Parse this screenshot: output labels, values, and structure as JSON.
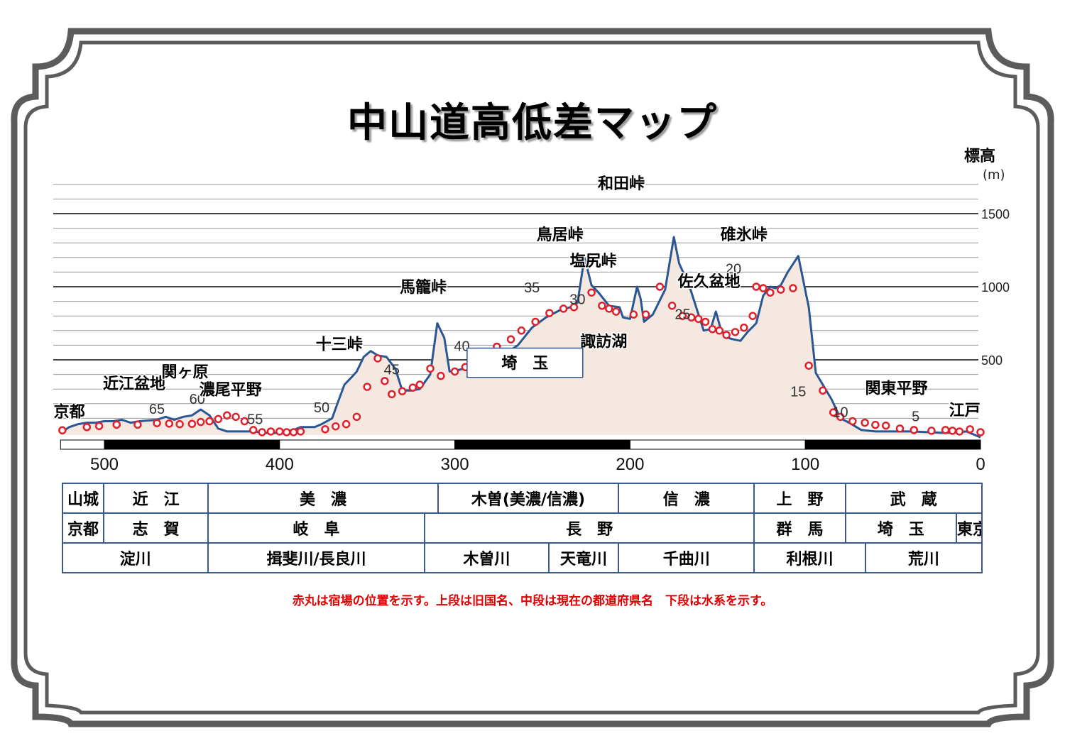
{
  "title": "中山道高低差マップ",
  "y_axis_title": "標高",
  "y_axis_unit": "(m)",
  "note": "赤丸は宿場の位置を示す。上段は旧国名、中段は現在の都道府県名　下段は水系を示す。",
  "chart_data": {
    "type": "area",
    "xlim": [
      525,
      0
    ],
    "ylim": [
      0,
      1700
    ],
    "y_ticks": [
      "500",
      "1000",
      "1500"
    ],
    "x_ticks": [
      "500",
      "400",
      "300",
      "200",
      "100",
      "0"
    ],
    "profile": [
      [
        525,
        0
      ],
      [
        520,
        40
      ],
      [
        515,
        60
      ],
      [
        510,
        70
      ],
      [
        505,
        70
      ],
      [
        500,
        80
      ],
      [
        495,
        80
      ],
      [
        490,
        90
      ],
      [
        485,
        70
      ],
      [
        480,
        80
      ],
      [
        470,
        90
      ],
      [
        465,
        110
      ],
      [
        460,
        90
      ],
      [
        455,
        110
      ],
      [
        450,
        120
      ],
      [
        445,
        160
      ],
      [
        440,
        120
      ],
      [
        435,
        30
      ],
      [
        430,
        10
      ],
      [
        425,
        10
      ],
      [
        415,
        10
      ],
      [
        408,
        0
      ],
      [
        400,
        0
      ],
      [
        392,
        20
      ],
      [
        388,
        40
      ],
      [
        380,
        40
      ],
      [
        376,
        60
      ],
      [
        370,
        100
      ],
      [
        367,
        200
      ],
      [
        363,
        330
      ],
      [
        359,
        380
      ],
      [
        356,
        420
      ],
      [
        352,
        520
      ],
      [
        348,
        560
      ],
      [
        344,
        530
      ],
      [
        339,
        520
      ],
      [
        334,
        440
      ],
      [
        330,
        290
      ],
      [
        325,
        290
      ],
      [
        320,
        300
      ],
      [
        314,
        400
      ],
      [
        310,
        750
      ],
      [
        306,
        650
      ],
      [
        303,
        420
      ],
      [
        298,
        430
      ],
      [
        292,
        450
      ],
      [
        288,
        450
      ],
      [
        282,
        490
      ],
      [
        274,
        520
      ],
      [
        264,
        600
      ],
      [
        256,
        720
      ],
      [
        248,
        790
      ],
      [
        240,
        840
      ],
      [
        234,
        860
      ],
      [
        230,
        890
      ],
      [
        226,
        1200
      ],
      [
        222,
        1010
      ],
      [
        218,
        960
      ],
      [
        212,
        870
      ],
      [
        206,
        860
      ],
      [
        204,
        790
      ],
      [
        200,
        780
      ],
      [
        196,
        1000
      ],
      [
        194,
        920
      ],
      [
        192,
        760
      ],
      [
        187,
        810
      ],
      [
        180,
        980
      ],
      [
        175,
        1340
      ],
      [
        172,
        1160
      ],
      [
        166,
        1000
      ],
      [
        162,
        850
      ],
      [
        158,
        700
      ],
      [
        154,
        710
      ],
      [
        151,
        830
      ],
      [
        148,
        700
      ],
      [
        144,
        650
      ],
      [
        141,
        640
      ],
      [
        137,
        630
      ],
      [
        133,
        690
      ],
      [
        128,
        750
      ],
      [
        124,
        940
      ],
      [
        120,
        1000
      ],
      [
        117,
        990
      ],
      [
        114,
        1010
      ],
      [
        110,
        1100
      ],
      [
        104,
        1210
      ],
      [
        98,
        860
      ],
      [
        94,
        410
      ],
      [
        90,
        330
      ],
      [
        85,
        230
      ],
      [
        80,
        100
      ],
      [
        75,
        70
      ],
      [
        68,
        20
      ],
      [
        60,
        10
      ],
      [
        52,
        10
      ],
      [
        40,
        10
      ],
      [
        20,
        0
      ],
      [
        8,
        10
      ],
      [
        0,
        -30
      ]
    ],
    "stations": [
      [
        524,
        18
      ],
      [
        510,
        40
      ],
      [
        503,
        47
      ],
      [
        493,
        57
      ],
      [
        481,
        57
      ],
      [
        470,
        67
      ],
      [
        463,
        64
      ],
      [
        457,
        60
      ],
      [
        450,
        62
      ],
      [
        445,
        75
      ],
      [
        440,
        80
      ],
      [
        435,
        95
      ],
      [
        430,
        120
      ],
      [
        425,
        110
      ],
      [
        420,
        80
      ],
      [
        415,
        20
      ],
      [
        410,
        5
      ],
      [
        405,
        10
      ],
      [
        400,
        10
      ],
      [
        396,
        5
      ],
      [
        392,
        5
      ],
      [
        388,
        10
      ],
      [
        374,
        25
      ],
      [
        368,
        45
      ],
      [
        362,
        60
      ],
      [
        356,
        110
      ],
      [
        350,
        315
      ],
      [
        344,
        510
      ],
      [
        340,
        355
      ],
      [
        336,
        265
      ],
      [
        330,
        285
      ],
      [
        324,
        310
      ],
      [
        320,
        330
      ],
      [
        314,
        440
      ],
      [
        308,
        390
      ],
      [
        300,
        420
      ],
      [
        294,
        450
      ],
      [
        288,
        490
      ],
      [
        282,
        510
      ],
      [
        276,
        590
      ],
      [
        268,
        640
      ],
      [
        262,
        700
      ],
      [
        254,
        760
      ],
      [
        246,
        820
      ],
      [
        238,
        850
      ],
      [
        232,
        860
      ],
      [
        222,
        960
      ],
      [
        216,
        870
      ],
      [
        212,
        850
      ],
      [
        208,
        830
      ],
      [
        198,
        810
      ],
      [
        191,
        810
      ],
      [
        183,
        1000
      ],
      [
        176,
        870
      ],
      [
        170,
        800
      ],
      [
        165,
        790
      ],
      [
        161,
        780
      ],
      [
        157,
        760
      ],
      [
        153,
        710
      ],
      [
        149,
        700
      ],
      [
        145,
        670
      ],
      [
        140,
        690
      ],
      [
        135,
        720
      ],
      [
        130,
        800
      ],
      [
        128,
        1000
      ],
      [
        124,
        990
      ],
      [
        120,
        960
      ],
      [
        114,
        980
      ],
      [
        107,
        990
      ],
      [
        98,
        460
      ],
      [
        90,
        290
      ],
      [
        84,
        140
      ],
      [
        80,
        110
      ],
      [
        73,
        80
      ],
      [
        66,
        70
      ],
      [
        60,
        55
      ],
      [
        54,
        50
      ],
      [
        46,
        30
      ],
      [
        38,
        20
      ],
      [
        28,
        15
      ],
      [
        20,
        20
      ],
      [
        16,
        15
      ],
      [
        12,
        10
      ],
      [
        6,
        25
      ],
      [
        0,
        5
      ]
    ],
    "distance_labels": [
      {
        "text": "65",
        "x": 470,
        "elev": 130
      },
      {
        "text": "60",
        "x": 447,
        "elev": 200
      },
      {
        "text": "55",
        "x": 414,
        "elev": 60
      },
      {
        "text": "50",
        "x": 376,
        "elev": 140
      },
      {
        "text": "45",
        "x": 336,
        "elev": 400
      },
      {
        "text": "40",
        "x": 296,
        "elev": 560
      },
      {
        "text": "35",
        "x": 256,
        "elev": 960
      },
      {
        "text": "30",
        "x": 230,
        "elev": 880
      },
      {
        "text": "25",
        "x": 170,
        "elev": 780
      },
      {
        "text": "20",
        "x": 141,
        "elev": 1090
      },
      {
        "text": "15",
        "x": 104,
        "elev": 250
      },
      {
        "text": "10",
        "x": 80,
        "elev": 110
      },
      {
        "text": "5",
        "x": 37,
        "elev": 80
      }
    ],
    "place_labels": [
      {
        "text": "京都",
        "x": 520,
        "elev": 110
      },
      {
        "text": "近江盆地",
        "x": 483,
        "elev": 300
      },
      {
        "text": "関ヶ原",
        "x": 454,
        "elev": 380
      },
      {
        "text": "濃尾平野",
        "x": 428,
        "elev": 260
      },
      {
        "text": "十三峠",
        "x": 366,
        "elev": 570
      },
      {
        "text": "馬籠峠",
        "x": 318,
        "elev": 960
      },
      {
        "text": "鳥居峠",
        "x": 240,
        "elev": 1320
      },
      {
        "text": "塩尻峠",
        "x": 221,
        "elev": 1140
      },
      {
        "text": "諏訪湖",
        "x": 215,
        "elev": 590
      },
      {
        "text": "和田峠",
        "x": 205,
        "elev": 1670
      },
      {
        "text": "佐久盆地",
        "x": 155,
        "elev": 1000
      },
      {
        "text": "碓氷峠",
        "x": 135,
        "elev": 1320
      },
      {
        "text": "関東平野",
        "x": 48,
        "elev": 270
      },
      {
        "text": "江戸",
        "x": 9,
        "elev": 120
      }
    ],
    "box_label": {
      "text": "埼　玉",
      "x1": 293,
      "x2": 227,
      "elev_top": 580,
      "elev_bottom": 380
    },
    "scale_bar": [
      {
        "from": 525,
        "to": 500,
        "fill": "#ffffff"
      },
      {
        "from": 500,
        "to": 400,
        "fill": "#000000"
      },
      {
        "from": 400,
        "to": 300,
        "fill": "#ffffff"
      },
      {
        "from": 300,
        "to": 200,
        "fill": "#000000"
      },
      {
        "from": 200,
        "to": 100,
        "fill": "#ffffff"
      },
      {
        "from": 100,
        "to": 0,
        "fill": "#000000"
      }
    ],
    "fill_color": "#f4e8e0",
    "line_color": "#2a5694",
    "station_color": "#e0202a"
  },
  "regions": {
    "row1": [
      "山城",
      "近　江",
      "美　濃",
      "木曽(美濃/信濃)",
      "信　濃",
      "上　野",
      "武　蔵"
    ],
    "row2": [
      "京都",
      "志　賀",
      "岐　阜",
      "長　野",
      "群　馬",
      "埼　玉",
      "東京"
    ],
    "row3": [
      "淀川",
      "揖斐川/長良川",
      "木曽川",
      "天竜川",
      "千曲川",
      "利根川",
      "荒川"
    ]
  }
}
